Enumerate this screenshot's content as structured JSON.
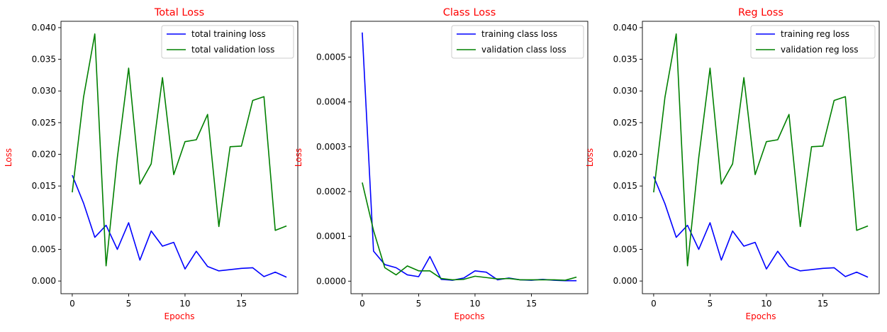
{
  "colors": {
    "title": "#ff0000",
    "axis_label": "#ff0000",
    "training": "#0000ff",
    "validation": "#008000",
    "axis": "#000000",
    "text": "#000000"
  },
  "chart_data": [
    {
      "type": "line",
      "title": "Total Loss",
      "xlabel": "Epochs",
      "ylabel": "Loss",
      "xlim": [
        -1,
        20
      ],
      "ylim": [
        -0.002,
        0.041
      ],
      "xticks": [
        0,
        5,
        10,
        15
      ],
      "xtick_labels": [
        "0",
        "5",
        "10",
        "15"
      ],
      "yticks": [
        0.0,
        0.005,
        0.01,
        0.015,
        0.02,
        0.025,
        0.03,
        0.035,
        0.04
      ],
      "ytick_labels": [
        "0.000",
        "0.005",
        "0.010",
        "0.015",
        "0.020",
        "0.025",
        "0.030",
        "0.035",
        "0.040"
      ],
      "grid": false,
      "legend": "top-right",
      "x": [
        0,
        1,
        2,
        3,
        4,
        5,
        6,
        7,
        8,
        9,
        10,
        11,
        12,
        13,
        14,
        15,
        16,
        17,
        18,
        19
      ],
      "series": [
        {
          "name": "total training loss",
          "color": "#0000ff",
          "values": [
            0.0167,
            0.0123,
            0.0069,
            0.0088,
            0.005,
            0.0092,
            0.0033,
            0.0079,
            0.0055,
            0.0061,
            0.0019,
            0.0047,
            0.0023,
            0.0016,
            0.0018,
            0.002,
            0.0021,
            0.0007,
            0.0014,
            0.0006
          ]
        },
        {
          "name": "total validation loss",
          "color": "#008000",
          "values": [
            0.014,
            0.029,
            0.039,
            0.0024,
            0.0195,
            0.0336,
            0.0153,
            0.0185,
            0.0321,
            0.0168,
            0.022,
            0.0223,
            0.0263,
            0.0086,
            0.0212,
            0.0213,
            0.0285,
            0.0291,
            0.008,
            0.0087
          ]
        }
      ]
    },
    {
      "type": "line",
      "title": "Class Loss",
      "xlabel": "Epochs",
      "ylabel": "Loss",
      "xlim": [
        -1,
        20
      ],
      "ylim": [
        -2.8e-05,
        0.00058
      ],
      "xticks": [
        0,
        5,
        10,
        15
      ],
      "xtick_labels": [
        "0",
        "5",
        "10",
        "15"
      ],
      "yticks": [
        0.0,
        0.0001,
        0.0002,
        0.0003,
        0.0004,
        0.0005
      ],
      "ytick_labels": [
        "0.0000",
        "0.0001",
        "0.0002",
        "0.0003",
        "0.0004",
        "0.0005"
      ],
      "grid": false,
      "legend": "top-right",
      "x": [
        0,
        1,
        2,
        3,
        4,
        5,
        6,
        7,
        8,
        9,
        10,
        11,
        12,
        13,
        14,
        15,
        16,
        17,
        18,
        19
      ],
      "series": [
        {
          "name": "training class loss",
          "color": "#0000ff",
          "values": [
            0.000555,
            6.7e-05,
            3.7e-05,
            3e-05,
            1.4e-05,
            1e-05,
            5.5e-05,
            4e-06,
            2e-06,
            7e-06,
            2.3e-05,
            2e-05,
            3e-06,
            7e-06,
            3e-06,
            2e-06,
            4e-06,
            2e-06,
            1e-06,
            1e-06
          ]
        },
        {
          "name": "validation class loss",
          "color": "#008000",
          "values": [
            0.00022,
            0.000113,
            3e-05,
            1.4e-05,
            3.4e-05,
            2.3e-05,
            2.3e-05,
            6e-06,
            3e-06,
            4e-06,
            1.1e-05,
            8e-06,
            5e-06,
            6e-06,
            3e-06,
            3e-06,
            3e-06,
            3e-06,
            2e-06,
            9e-06
          ]
        }
      ]
    },
    {
      "type": "line",
      "title": "Reg Loss",
      "xlabel": "Epochs",
      "ylabel": "Loss",
      "xlim": [
        -1,
        20
      ],
      "ylim": [
        -0.002,
        0.041
      ],
      "xticks": [
        0,
        5,
        10,
        15
      ],
      "xtick_labels": [
        "0",
        "5",
        "10",
        "15"
      ],
      "yticks": [
        0.0,
        0.005,
        0.01,
        0.015,
        0.02,
        0.025,
        0.03,
        0.035,
        0.04
      ],
      "ytick_labels": [
        "0.000",
        "0.005",
        "0.010",
        "0.015",
        "0.020",
        "0.025",
        "0.030",
        "0.035",
        "0.040"
      ],
      "grid": false,
      "legend": "top-right",
      "x": [
        0,
        1,
        2,
        3,
        4,
        5,
        6,
        7,
        8,
        9,
        10,
        11,
        12,
        13,
        14,
        15,
        16,
        17,
        18,
        19
      ],
      "series": [
        {
          "name": "training reg loss",
          "color": "#0000ff",
          "values": [
            0.0165,
            0.0122,
            0.0069,
            0.0088,
            0.005,
            0.0092,
            0.0033,
            0.0079,
            0.0055,
            0.0061,
            0.0019,
            0.0047,
            0.0023,
            0.0016,
            0.0018,
            0.002,
            0.0021,
            0.0007,
            0.0014,
            0.0006
          ]
        },
        {
          "name": "validation reg loss",
          "color": "#008000",
          "values": [
            0.014,
            0.029,
            0.039,
            0.0024,
            0.0195,
            0.0336,
            0.0153,
            0.0185,
            0.0321,
            0.0168,
            0.022,
            0.0223,
            0.0263,
            0.0086,
            0.0212,
            0.0213,
            0.0285,
            0.0291,
            0.008,
            0.0087
          ]
        }
      ]
    }
  ]
}
